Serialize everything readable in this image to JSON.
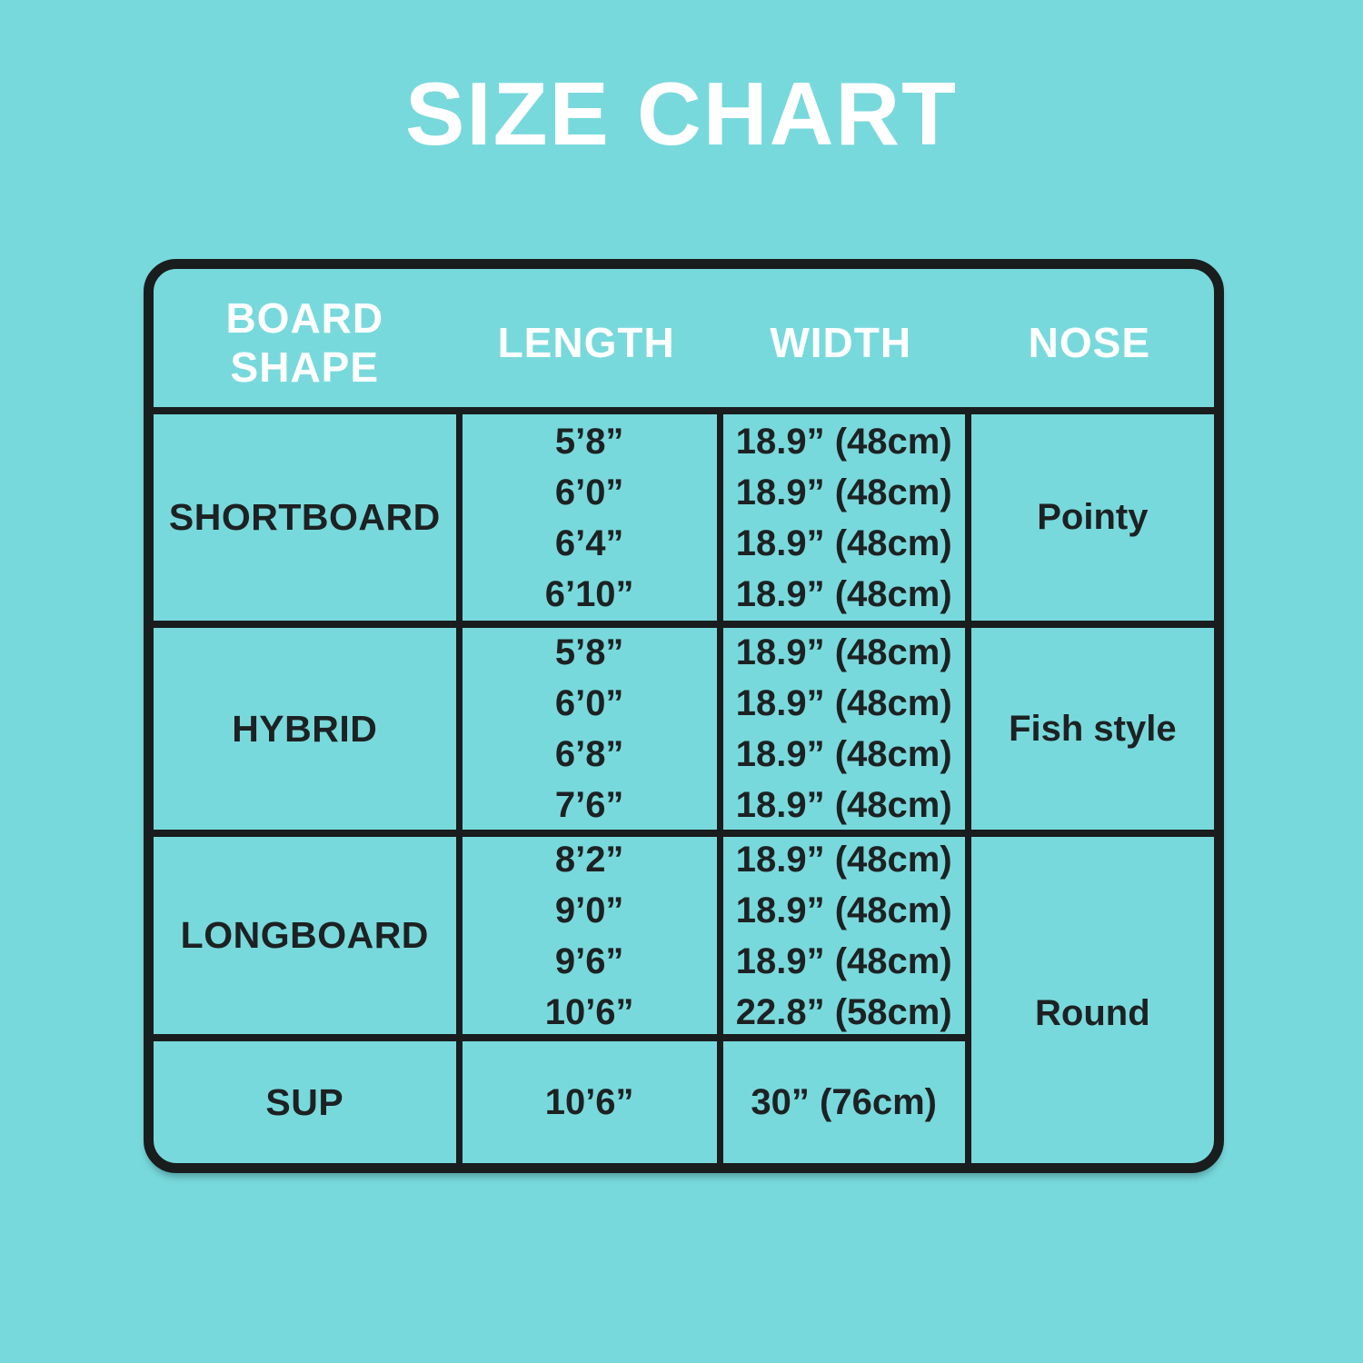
{
  "title": "SIZE CHART",
  "colors": {
    "background": "#78d9dc",
    "line": "#191d1e",
    "body_text": "#1d2122",
    "header_text": "#ffffff"
  },
  "table": {
    "headers": [
      "BOARD SHAPE",
      "LENGTH",
      "WIDTH",
      "NOSE"
    ],
    "rows": [
      {
        "shape": "SHORTBOARD",
        "lengths": [
          "5’8”",
          "6’0”",
          "6’4”",
          "6’10”"
        ],
        "widths": [
          "18.9” (48cm)",
          "18.9” (48cm)",
          "18.9” (48cm)",
          "18.9” (48cm)"
        ],
        "nose": "Pointy"
      },
      {
        "shape": "HYBRID",
        "lengths": [
          "5’8”",
          "6’0”",
          "6’8”",
          "7’6”"
        ],
        "widths": [
          "18.9” (48cm)",
          "18.9” (48cm)",
          "18.9” (48cm)",
          "18.9” (48cm)"
        ],
        "nose": "Fish style"
      },
      {
        "shape": "LONGBOARD",
        "lengths": [
          "8’2”",
          "9’0”",
          "9’6”",
          "10’6”"
        ],
        "widths": [
          "18.9” (48cm)",
          "18.9” (48cm)",
          "18.9” (48cm)",
          "22.8” (58cm)"
        ],
        "nose": "Round"
      },
      {
        "shape": "SUP",
        "lengths": [
          "10’6”"
        ],
        "widths": [
          "30” (76cm)"
        ],
        "nose": "Round"
      }
    ]
  },
  "chart_data": {
    "type": "table",
    "title": "SIZE CHART",
    "columns": [
      "BOARD SHAPE",
      "LENGTH",
      "WIDTH",
      "NOSE"
    ],
    "rows": [
      [
        "SHORTBOARD",
        "5’8”",
        "18.9” (48cm)",
        "Pointy"
      ],
      [
        "SHORTBOARD",
        "6’0”",
        "18.9” (48cm)",
        "Pointy"
      ],
      [
        "SHORTBOARD",
        "6’4”",
        "18.9” (48cm)",
        "Pointy"
      ],
      [
        "SHORTBOARD",
        "6’10”",
        "18.9” (48cm)",
        "Pointy"
      ],
      [
        "HYBRID",
        "5’8”",
        "18.9” (48cm)",
        "Fish style"
      ],
      [
        "HYBRID",
        "6’0”",
        "18.9” (48cm)",
        "Fish style"
      ],
      [
        "HYBRID",
        "6’8”",
        "18.9” (48cm)",
        "Fish style"
      ],
      [
        "HYBRID",
        "7’6”",
        "18.9” (48cm)",
        "Fish style"
      ],
      [
        "LONGBOARD",
        "8’2”",
        "18.9” (48cm)",
        "Round"
      ],
      [
        "LONGBOARD",
        "9’0”",
        "18.9” (48cm)",
        "Round"
      ],
      [
        "LONGBOARD",
        "9’6”",
        "18.9” (48cm)",
        "Round"
      ],
      [
        "LONGBOARD",
        "10’6”",
        "22.8” (58cm)",
        "Round"
      ],
      [
        "SUP",
        "10’6”",
        "30” (76cm)",
        "Round"
      ]
    ],
    "notes": "NOSE cell 'Round' is merged across the LONGBOARD and SUP rows; header row has no vertical dividers."
  }
}
